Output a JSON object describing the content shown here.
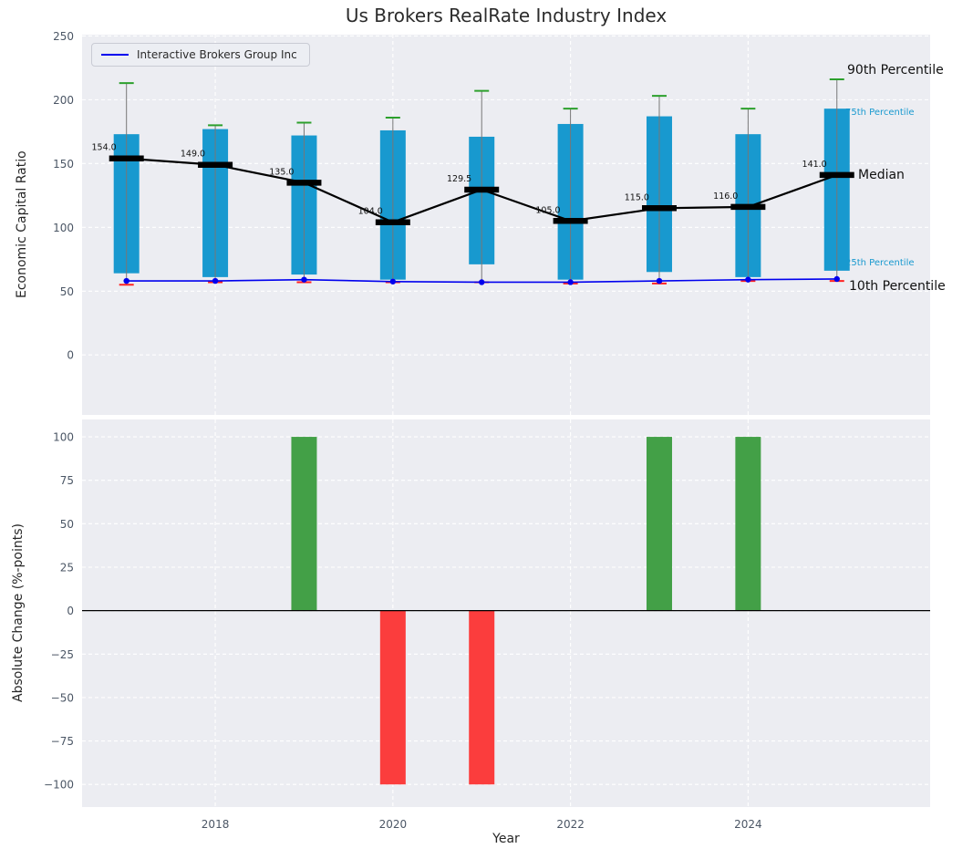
{
  "title": "Us Brokers RealRate Industry Index",
  "legend": {
    "label": "Interactive Brokers Group Inc"
  },
  "annotations": {
    "p90": "90th Percentile",
    "p75": "75th Percentile",
    "median": "Median",
    "p25": "25th Percentile",
    "p10": "10th Percentile"
  },
  "colors": {
    "box": "#1899cf",
    "median_line": "#000000",
    "company_line": "#0000ee",
    "p90_cap": "#2ca02c",
    "p10_cap": "#ff2222",
    "bar_positive": "#43a047",
    "bar_negative": "#fb3d3d",
    "panel_bg": "#ecedf2",
    "grid": "#ffffff",
    "annotation_accent": "#1899cf"
  },
  "chart_data": [
    {
      "type": "box-line",
      "title": "Us Brokers RealRate Industry Index",
      "ylabel": "Economic Capital Ratio",
      "x": [
        2017,
        2018,
        2019,
        2020,
        2021,
        2022,
        2023,
        2024,
        2025
      ],
      "xlim": [
        2016.5,
        2026.05
      ],
      "ylim": [
        -47,
        251
      ],
      "yticks": [
        0,
        50,
        100,
        150,
        200,
        250
      ],
      "xticks": [
        2018,
        2020,
        2022,
        2024
      ],
      "grid": true,
      "legend_position": "upper left",
      "series": [
        {
          "name": "90th Percentile",
          "role": "p90",
          "values": [
            213,
            180,
            182,
            186,
            207,
            193,
            203,
            193,
            216
          ]
        },
        {
          "name": "75th Percentile",
          "role": "p75",
          "values": [
            173,
            177,
            172,
            176,
            171,
            181,
            187,
            173,
            193
          ]
        },
        {
          "name": "Median",
          "role": "median",
          "values": [
            154.0,
            149.0,
            135.0,
            104.0,
            129.5,
            105.0,
            115.0,
            116.0,
            141.0
          ]
        },
        {
          "name": "25th Percentile",
          "role": "p25",
          "values": [
            64,
            61,
            63,
            59,
            71,
            59,
            65,
            61,
            66
          ]
        },
        {
          "name": "10th Percentile",
          "role": "p10",
          "values": [
            55,
            57,
            57,
            57,
            57,
            56,
            56,
            58,
            58
          ]
        },
        {
          "name": "Interactive Brokers Group Inc",
          "role": "company",
          "values": [
            58,
            58,
            59,
            57.5,
            57,
            57,
            58,
            59,
            59.5
          ]
        }
      ]
    },
    {
      "type": "bar",
      "ylabel": "Absolute Change (%-points)",
      "xlabel": "Year",
      "x": [
        2017,
        2018,
        2019,
        2020,
        2021,
        2022,
        2023,
        2024,
        2025
      ],
      "values": [
        0,
        0,
        100,
        -100,
        -100,
        0,
        100,
        100,
        0
      ],
      "ylim": [
        -113,
        110
      ],
      "yticks": [
        -100,
        -75,
        -50,
        -25,
        0,
        25,
        50,
        75,
        100
      ],
      "xticks": [
        2018,
        2020,
        2022,
        2024
      ],
      "grid": true
    }
  ]
}
